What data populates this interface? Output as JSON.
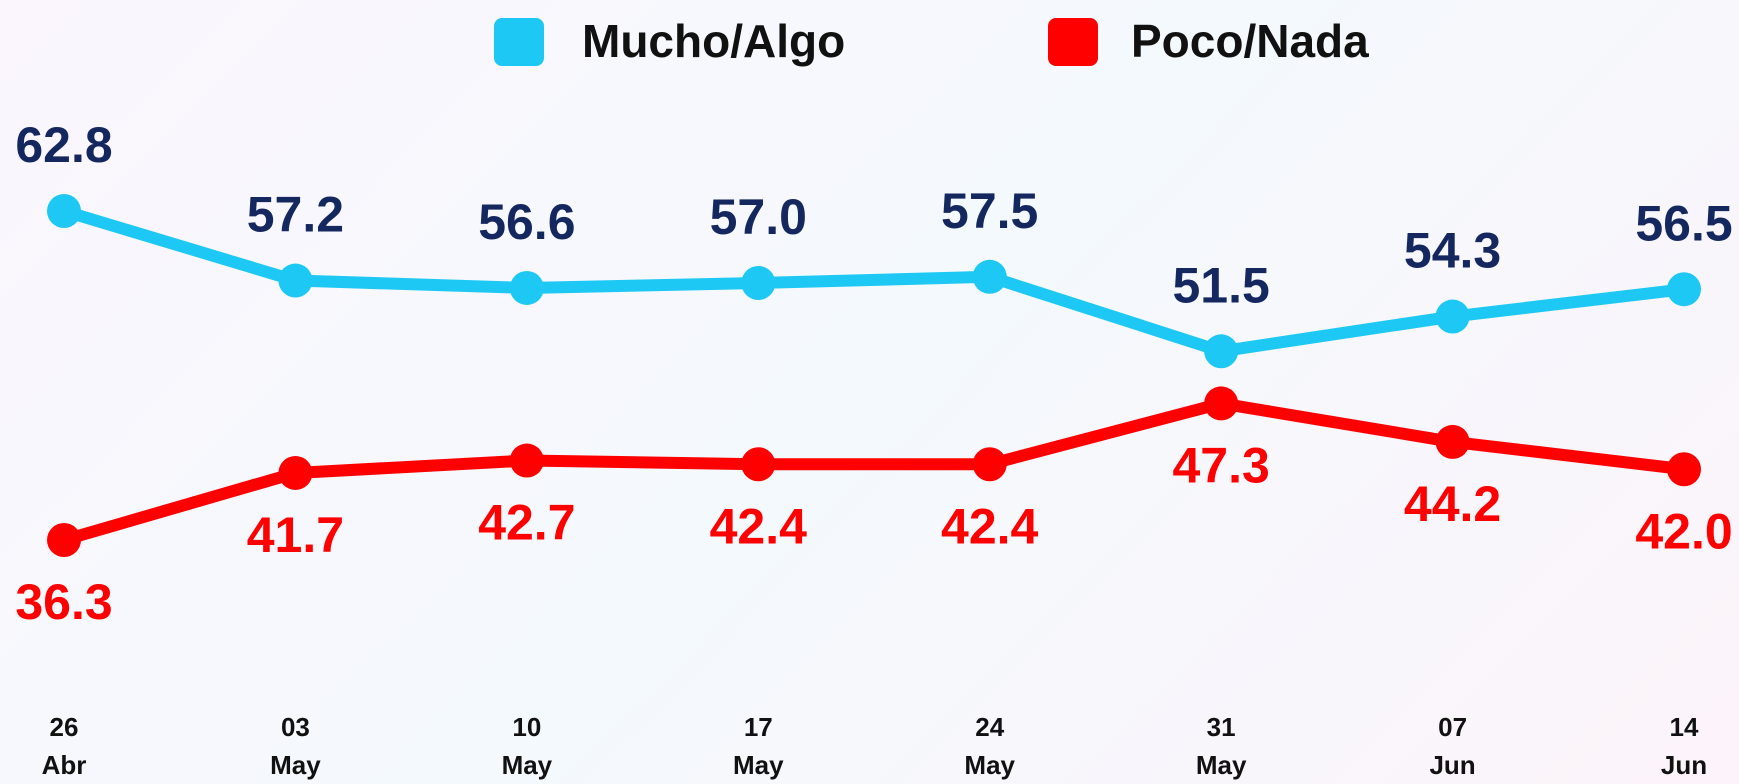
{
  "chart_data": {
    "type": "line",
    "categories": [
      "26 Abr",
      "03 May",
      "10 May",
      "17 May",
      "24 May",
      "31 May",
      "07 Jun",
      "14 Jun"
    ],
    "series": [
      {
        "name": "Mucho/Algo",
        "color": "#1ec8f5",
        "label_color": "#14285f",
        "values": [
          62.8,
          57.2,
          56.6,
          57.0,
          57.5,
          51.5,
          54.3,
          56.5
        ],
        "value_labels": [
          "62.8",
          "57.2",
          "56.6",
          "57.0",
          "57.5",
          "51.5",
          "54.3",
          "56.5"
        ]
      },
      {
        "name": "Poco/Nada",
        "color": "#ff0000",
        "label_color": "#ff0000",
        "values": [
          36.3,
          41.7,
          42.7,
          42.4,
          42.4,
          47.3,
          44.2,
          42.0
        ],
        "value_labels": [
          "36.3",
          "41.7",
          "42.7",
          "42.4",
          "42.4",
          "47.3",
          "44.2",
          "42.0"
        ]
      }
    ]
  }
}
